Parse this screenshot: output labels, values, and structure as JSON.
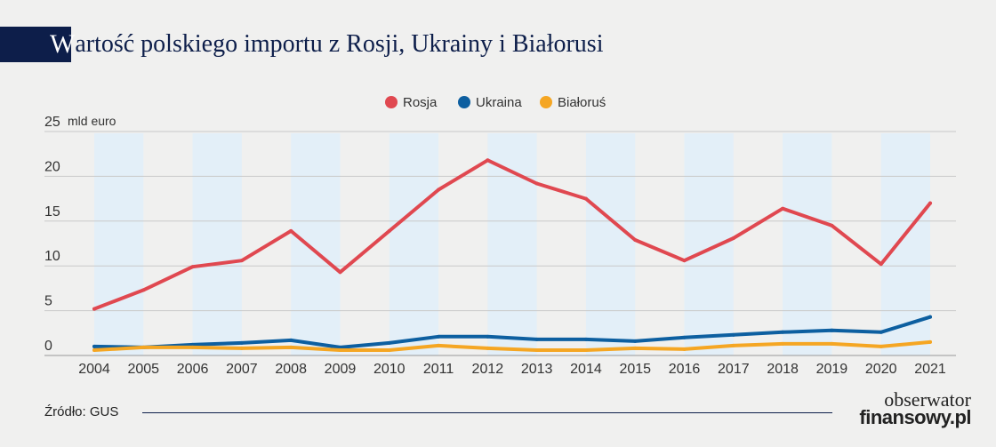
{
  "header": {
    "title_first": "W",
    "title_rest": "artość polskiego importu z Rosji, Ukrainy i Białorusi"
  },
  "footer": {
    "source": "Źródło: GUS",
    "logo_line1": "obserwator",
    "logo_line2": "finansowy.pl"
  },
  "chart_data": {
    "type": "line",
    "title": "Wartość polskiego importu z Rosji, Ukrainy i Białorusi",
    "ylabel": "mld euro",
    "ylim": [
      0,
      25
    ],
    "yticks": [
      0,
      5,
      10,
      15,
      20,
      25
    ],
    "grid": true,
    "legend_position": "top-center",
    "x": [
      "2004",
      "2005",
      "2006",
      "2007",
      "2008",
      "2009",
      "2010",
      "2011",
      "2012",
      "2013",
      "2014",
      "2015",
      "2016",
      "2017",
      "2018",
      "2019",
      "2020",
      "2021"
    ],
    "series": [
      {
        "name": "Rosja",
        "color": "#e04850",
        "values": [
          5.2,
          7.3,
          9.9,
          10.6,
          13.9,
          9.3,
          13.9,
          18.5,
          21.8,
          19.2,
          17.5,
          12.9,
          10.6,
          13.1,
          16.4,
          14.5,
          10.2,
          17.0
        ]
      },
      {
        "name": "Ukraina",
        "color": "#0d5fa0",
        "values": [
          1.0,
          0.9,
          1.2,
          1.4,
          1.7,
          0.9,
          1.4,
          2.1,
          2.1,
          1.8,
          1.8,
          1.6,
          2.0,
          2.3,
          2.6,
          2.8,
          2.6,
          4.3
        ]
      },
      {
        "name": "Białoruś",
        "color": "#f5a623",
        "values": [
          0.6,
          0.9,
          0.9,
          0.8,
          0.9,
          0.6,
          0.6,
          1.1,
          0.8,
          0.6,
          0.6,
          0.8,
          0.7,
          1.1,
          1.3,
          1.3,
          1.0,
          1.5
        ]
      }
    ]
  }
}
